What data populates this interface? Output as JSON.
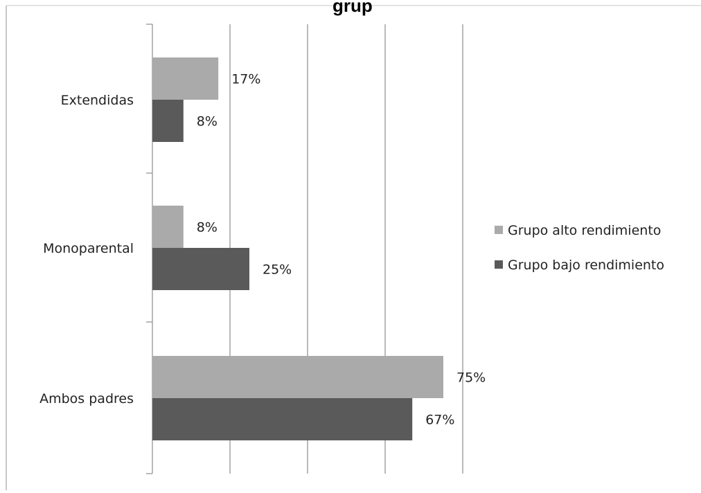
{
  "chart_data": {
    "type": "bar",
    "orientation": "horizontal",
    "title": "grup",
    "categories": [
      "Extendidas",
      "Monoparental",
      "Ambos padres"
    ],
    "series": [
      {
        "name": "Grupo alto rendimiento",
        "values": [
          17,
          8,
          75
        ],
        "labels": [
          "17%",
          "8%",
          "75%"
        ],
        "color": "#aaaaaa"
      },
      {
        "name": "Grupo bajo rendimiento",
        "values": [
          8,
          25,
          67
        ],
        "labels": [
          "8%",
          "25%",
          "67%"
        ],
        "color": "#5a5a5a"
      }
    ],
    "xlim": [
      0,
      80
    ],
    "x_gridlines": [
      20,
      40,
      60,
      80
    ],
    "grid": true,
    "legend_position": "right",
    "value_suffix": "%"
  }
}
